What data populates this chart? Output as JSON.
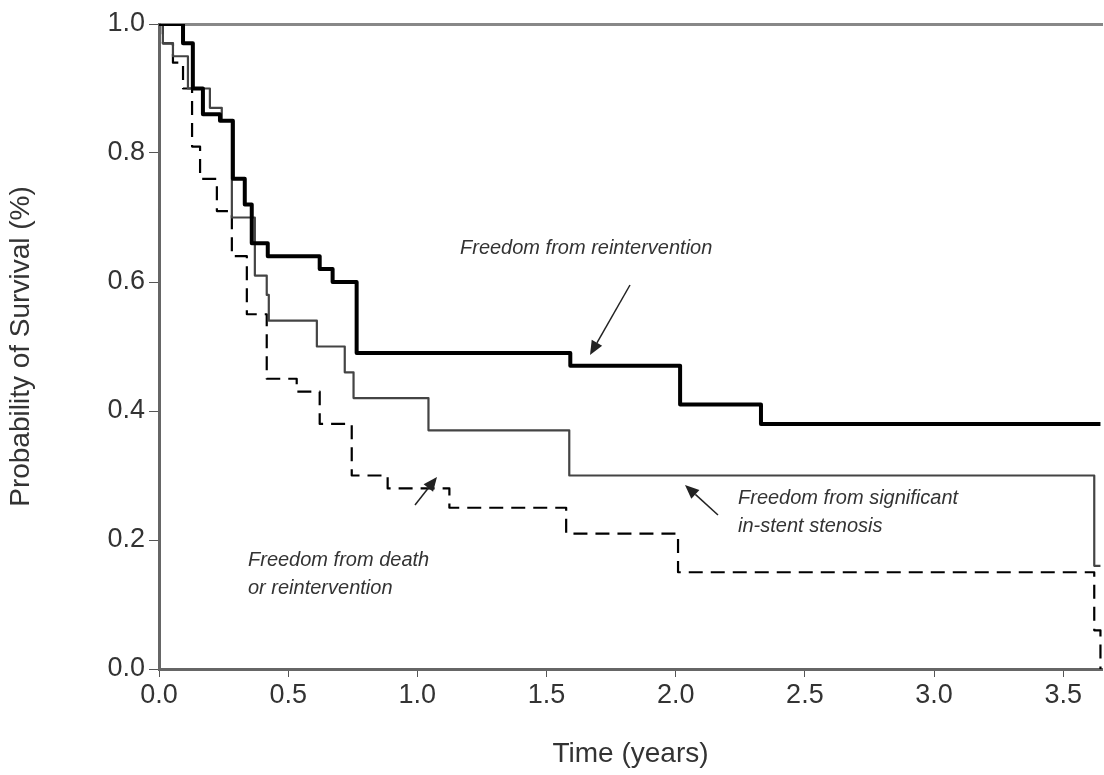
{
  "chart_data": {
    "type": "step",
    "xlabel": "Time (years)",
    "ylabel": "Probability of Survival (%)",
    "xlim": [
      0,
      3.65
    ],
    "xticks": [
      {
        "value": 0,
        "label": "0.0"
      },
      {
        "value": 0.5,
        "label": "0.5"
      },
      {
        "value": 1,
        "label": "1.0"
      },
      {
        "value": 1.5,
        "label": "1.5"
      },
      {
        "value": 2,
        "label": "2.0"
      },
      {
        "value": 2.5,
        "label": "2.5"
      },
      {
        "value": 3,
        "label": "3.0"
      },
      {
        "value": 3.5,
        "label": "3.5"
      }
    ],
    "ylim": [
      0,
      1
    ],
    "yticks": [
      {
        "value": 0,
        "label": "0.0"
      },
      {
        "value": 0.2,
        "label": "0.2"
      },
      {
        "value": 0.4,
        "label": "0.4"
      },
      {
        "value": 0.6,
        "label": "0.6"
      },
      {
        "value": 0.8,
        "label": "0.8"
      },
      {
        "value": 1,
        "label": "1.0"
      }
    ],
    "grid": false,
    "legend": false,
    "marker": "none",
    "series": [
      {
        "color": "#000000",
        "line_style": "solid",
        "x": [
          0,
          0.093,
          0.131,
          0.17,
          0.236,
          0.286,
          0.332,
          0.359,
          0.421,
          0.622,
          0.672,
          0.765,
          1.592,
          2.017,
          2.33,
          3.644
        ],
        "values": [
          1.0,
          0.97,
          0.9,
          0.86,
          0.85,
          0.76,
          0.72,
          0.66,
          0.64,
          0.62,
          0.6,
          0.49,
          0.47,
          0.41,
          0.38,
          0.38
        ]
      },
      {
        "color": "#444444",
        "line_style": "solid",
        "x": [
          0,
          0.015,
          0.054,
          0.112,
          0.197,
          0.243,
          0.282,
          0.371,
          0.417,
          0.425,
          0.611,
          0.719,
          0.753,
          1.043,
          1.588,
          3.62,
          3.644
        ],
        "values": [
          1.0,
          0.97,
          0.95,
          0.9,
          0.87,
          0.85,
          0.7,
          0.61,
          0.58,
          0.54,
          0.5,
          0.46,
          0.42,
          0.37,
          0.3,
          0.16,
          0.16
        ]
      },
      {
        "color": "#000000",
        "line_style": "dashed",
        "x": [
          0,
          0.015,
          0.054,
          0.093,
          0.128,
          0.159,
          0.224,
          0.282,
          0.34,
          0.417,
          0.533,
          0.622,
          0.746,
          0.885,
          1.124,
          1.576,
          2.009,
          3.62,
          3.644
        ],
        "values": [
          1.0,
          0.97,
          0.94,
          0.9,
          0.81,
          0.76,
          0.71,
          0.64,
          0.55,
          0.45,
          0.43,
          0.38,
          0.3,
          0.28,
          0.25,
          0.21,
          0.15,
          0.06,
          0.0
        ]
      }
    ],
    "annotations": [
      "Freedom from reintervention",
      "Freedom from significant\nin-stent stenosis",
      "Freedom from death\nor reintervention"
    ]
  }
}
